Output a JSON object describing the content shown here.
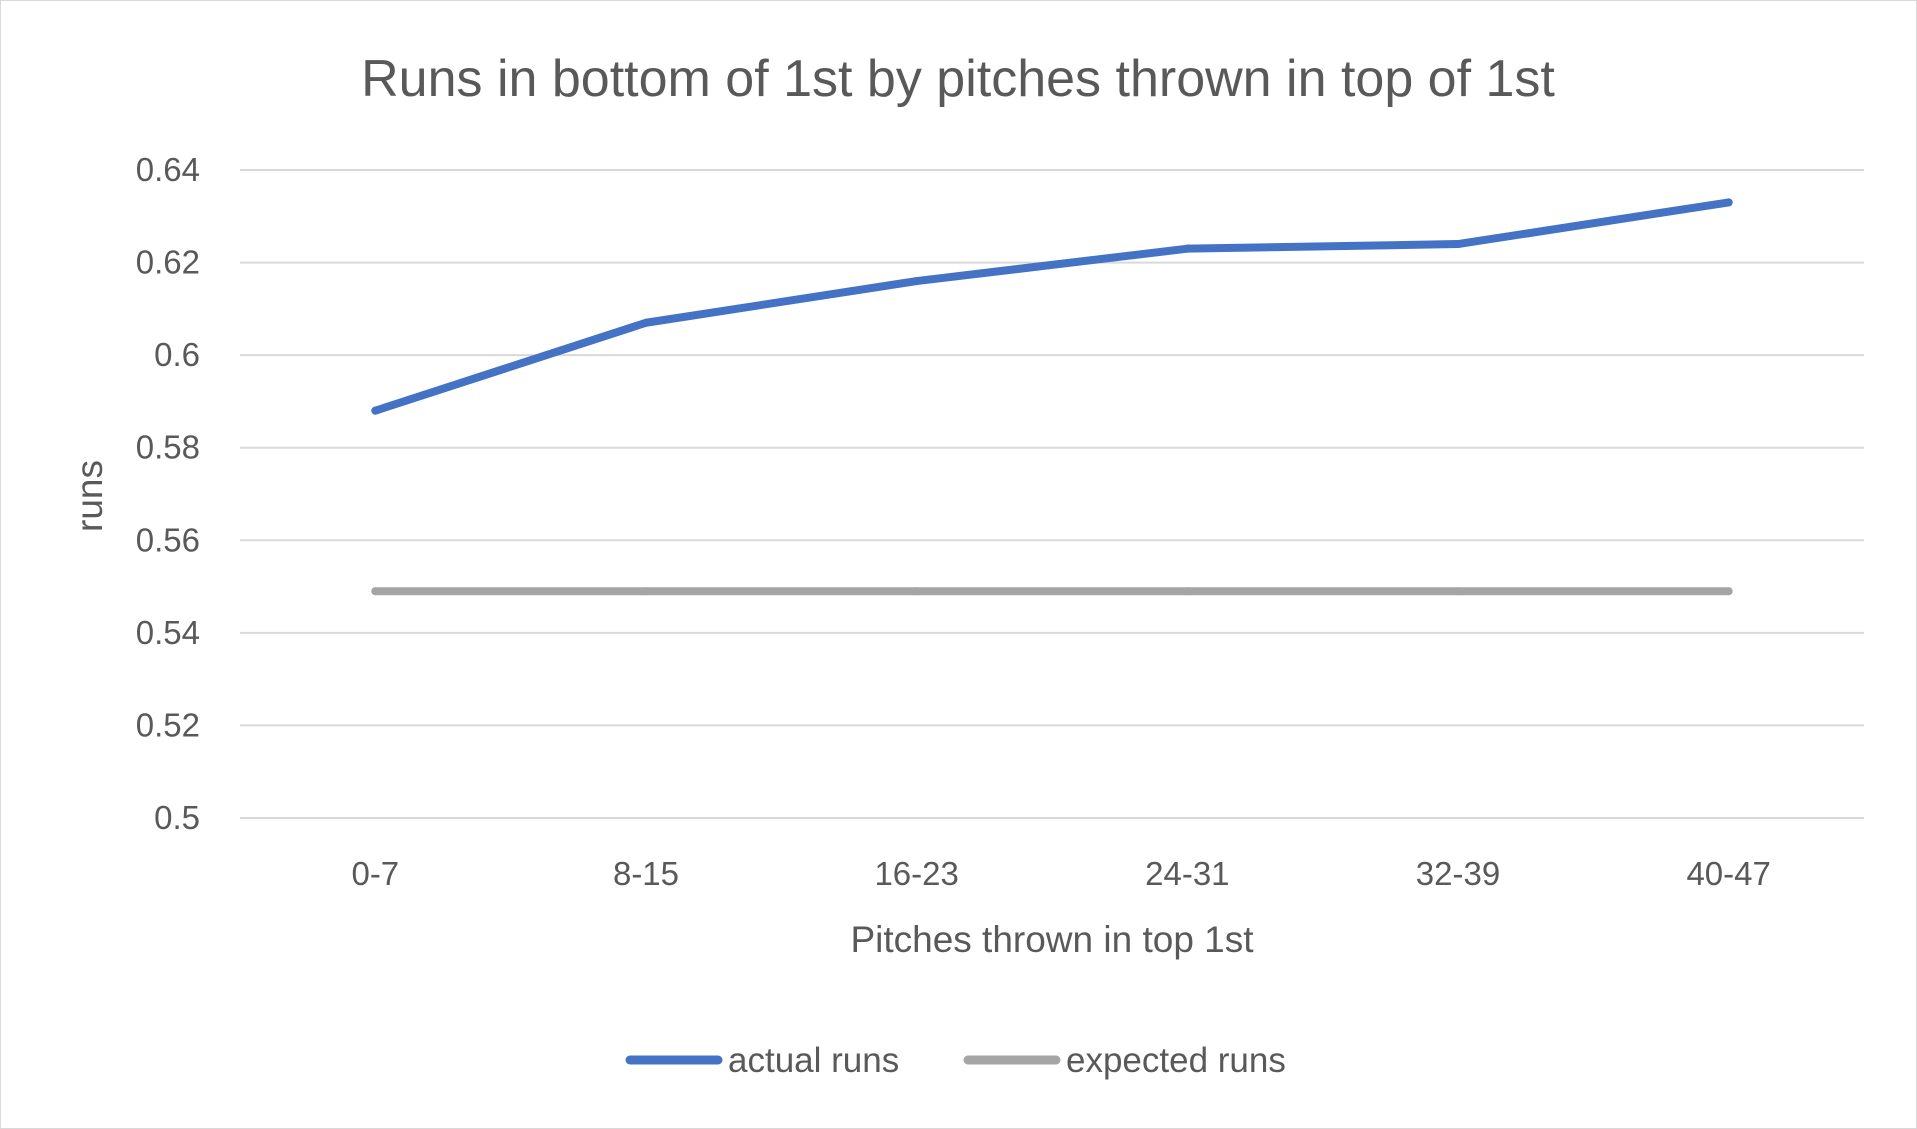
{
  "chart_data": {
    "type": "line",
    "title": "Runs in bottom of 1st by pitches thrown in top of 1st",
    "xlabel": "Pitches thrown in top 1st",
    "ylabel": "runs",
    "categories": [
      "0-7",
      "8-15",
      "16-23",
      "24-31",
      "32-39",
      "40-47"
    ],
    "ylim": [
      0.5,
      0.64
    ],
    "yticks": [
      0.5,
      0.52,
      0.54,
      0.56,
      0.58,
      0.6,
      0.62,
      0.64
    ],
    "ytick_labels": [
      "0.5",
      "0.52",
      "0.54",
      "0.56",
      "0.58",
      "0.6",
      "0.62",
      "0.64"
    ],
    "grid": true,
    "legend_position": "bottom",
    "series": [
      {
        "name": "actual runs",
        "color": "#4472c4",
        "values": [
          0.588,
          0.607,
          0.616,
          0.623,
          0.624,
          0.633
        ]
      },
      {
        "name": "expected runs",
        "color": "#a5a5a5",
        "values": [
          0.549,
          0.549,
          0.549,
          0.549,
          0.549,
          0.549
        ]
      }
    ]
  }
}
